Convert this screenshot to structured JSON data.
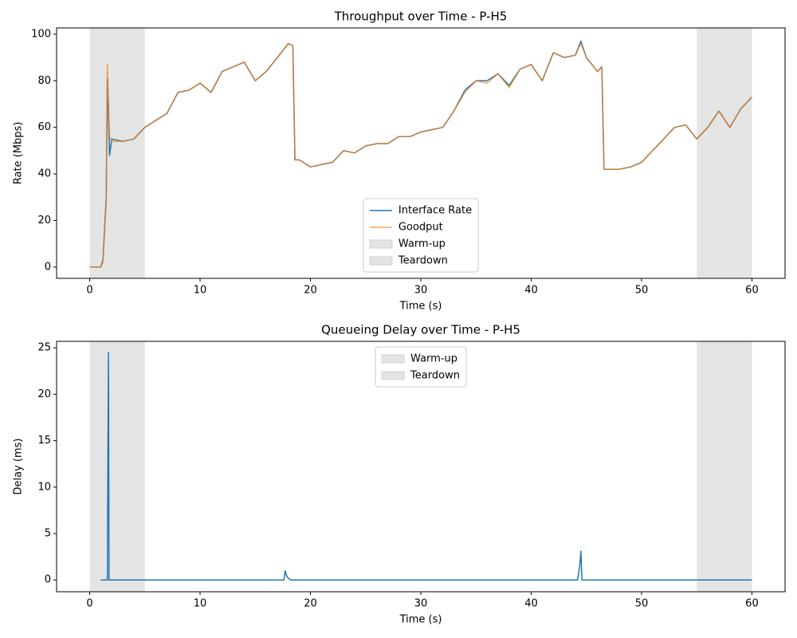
{
  "chart_data": [
    {
      "type": "line",
      "title": "Throughput over Time - P-H5",
      "x_label": "Time (s)",
      "y_label": "Rate (Mbps)",
      "x": [
        0,
        1,
        1.2,
        1.5,
        1.6,
        1.8,
        2,
        3,
        4,
        5,
        6,
        7,
        8,
        9,
        10,
        11,
        12,
        13,
        14,
        15,
        16,
        17,
        18,
        18.4,
        18.6,
        19,
        20,
        21,
        22,
        23,
        24,
        25,
        26,
        27,
        28,
        29,
        30,
        31,
        32,
        33,
        34,
        35,
        36,
        37,
        38,
        39,
        40,
        41,
        42,
        43,
        44,
        44.5,
        45,
        46,
        46.4,
        46.6,
        47,
        48,
        49,
        50,
        51,
        52,
        53,
        54,
        55,
        56,
        57,
        58,
        59,
        60
      ],
      "series": [
        {
          "name": "Interface Rate",
          "color": "#1f77b4",
          "opacity": 1,
          "values": [
            0,
            0,
            3,
            30,
            81,
            48,
            55,
            54,
            55,
            60,
            63,
            66,
            75,
            76,
            79,
            75,
            84,
            86,
            88,
            80,
            84,
            90,
            96,
            95,
            46,
            46,
            43,
            44,
            45,
            50,
            49,
            52,
            53,
            53,
            56,
            56,
            58,
            59,
            60,
            67,
            76,
            80,
            80,
            83,
            78,
            85,
            87,
            80,
            92,
            90,
            91,
            97,
            90,
            84,
            86,
            42,
            42,
            42,
            43,
            45,
            50,
            55,
            60,
            61,
            55,
            60,
            67,
            60,
            68,
            73
          ]
        },
        {
          "name": "Goodput",
          "color": "#ff7f0e",
          "opacity": 0.7,
          "values": [
            0,
            0,
            2,
            28,
            87,
            56,
            54,
            54,
            55,
            60,
            63,
            66,
            75,
            76,
            79,
            75,
            84,
            86,
            88,
            80,
            84,
            90,
            96,
            95,
            46,
            46,
            43,
            44,
            45,
            50,
            49,
            52,
            53,
            53,
            56,
            56,
            58,
            59,
            60,
            67,
            75,
            80,
            79,
            83,
            77,
            85,
            87,
            80,
            92,
            90,
            91,
            96,
            90,
            84,
            86,
            42,
            42,
            42,
            43,
            45,
            50,
            55,
            60,
            61,
            55,
            60,
            67,
            60,
            68,
            73
          ]
        }
      ],
      "spans": [
        {
          "name": "Warm-up",
          "range": [
            0,
            5
          ],
          "color": "#e4e4e4"
        },
        {
          "name": "Teardown",
          "range": [
            55,
            60
          ],
          "color": "#e4e4e4"
        }
      ],
      "xlim": [
        -3,
        63
      ],
      "ylim": [
        -4.85,
        102.7
      ],
      "xticks": [
        0,
        10,
        20,
        30,
        40,
        50,
        60
      ],
      "yticks": [
        0,
        20,
        40,
        60,
        80,
        100
      ],
      "legend": "lower center"
    },
    {
      "type": "line",
      "title": "Queueing Delay over Time - P-H5",
      "x_label": "Time (s)",
      "y_label": "Delay (ms)",
      "x": [
        1,
        1.6,
        1.65,
        1.7,
        1.75,
        17.6,
        17.7,
        17.8,
        17.9,
        18.2,
        44.2,
        44.4,
        44.5,
        44.6,
        60
      ],
      "series": [
        {
          "name": null,
          "color": "#1f77b4",
          "opacity": 1,
          "values": [
            0,
            0,
            13.3,
            24.5,
            0,
            0,
            1.0,
            0.6,
            0.3,
            0,
            0,
            1.5,
            3.1,
            0,
            0
          ]
        }
      ],
      "spans": [
        {
          "name": "Warm-up",
          "range": [
            0,
            5
          ],
          "color": "#e4e4e4"
        },
        {
          "name": "Teardown",
          "range": [
            55,
            60
          ],
          "color": "#e4e4e4"
        }
      ],
      "xlim": [
        -3,
        63
      ],
      "ylim": [
        -1.27,
        25.7
      ],
      "xticks": [
        0,
        10,
        20,
        30,
        40,
        50,
        60
      ],
      "yticks": [
        0,
        5,
        10,
        15,
        20,
        25
      ],
      "legend": "upper center"
    }
  ]
}
